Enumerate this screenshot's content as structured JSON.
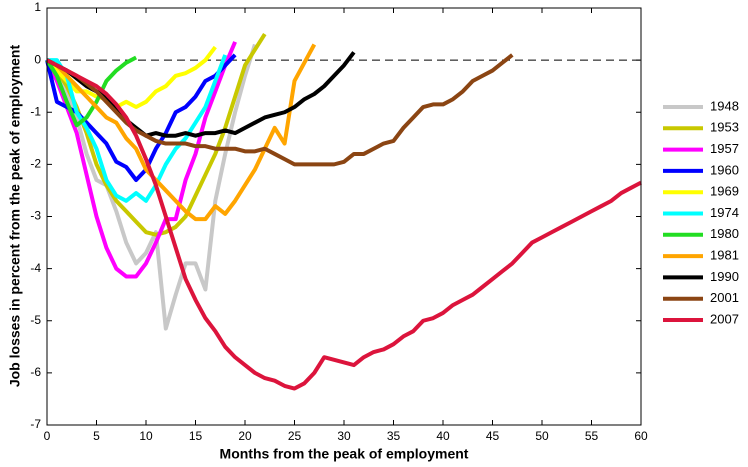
{
  "chart_data": {
    "type": "line",
    "xlabel": "Months from the peak of employment",
    "ylabel": "Job losses in percent from the peak of employment",
    "xlim": [
      0,
      60
    ],
    "ylim": [
      -7,
      1
    ],
    "xticks": [
      0,
      5,
      10,
      15,
      20,
      25,
      30,
      35,
      40,
      45,
      50,
      55,
      60
    ],
    "yticks": [
      -7,
      -6,
      -5,
      -4,
      -3,
      -2,
      -1,
      0,
      1
    ],
    "reference_line": 0,
    "x": [
      0,
      1,
      2,
      3,
      4,
      5,
      6,
      7,
      8,
      9,
      10,
      11,
      12,
      13,
      14,
      15,
      16,
      17,
      18,
      19,
      20,
      21,
      22,
      23,
      24,
      25,
      26,
      27,
      28,
      29,
      30,
      31,
      32,
      33,
      34,
      35,
      36,
      37,
      38,
      39,
      40,
      41,
      42,
      43,
      44,
      45,
      46,
      47,
      48,
      49,
      50,
      51,
      52,
      53,
      54,
      55,
      56,
      57,
      58,
      59,
      60
    ],
    "series": [
      {
        "name": "1948",
        "color": "#c8c8c8",
        "values": [
          0,
          -0.3,
          -0.6,
          -1.1,
          -1.8,
          -2.3,
          -2.4,
          -2.9,
          -3.5,
          -3.9,
          -3.7,
          -3.3,
          -5.15,
          -4.5,
          -3.9,
          -3.9,
          -4.4,
          -2.7,
          -1.8,
          -1.0,
          -0.3,
          0.3,
          null,
          null,
          null,
          null,
          null,
          null,
          null,
          null,
          null,
          null,
          null,
          null,
          null,
          null,
          null,
          null,
          null,
          null,
          null,
          null,
          null,
          null,
          null,
          null,
          null,
          null,
          null,
          null,
          null,
          null,
          null,
          null,
          null,
          null,
          null,
          null,
          null,
          null,
          null
        ]
      },
      {
        "name": "1953",
        "color": "#c8c800",
        "values": [
          0,
          -0.2,
          -0.5,
          -0.9,
          -1.4,
          -2.0,
          -2.4,
          -2.7,
          -2.9,
          -3.1,
          -3.3,
          -3.35,
          -3.3,
          -3.2,
          -3.0,
          -2.6,
          -2.2,
          -1.8,
          -1.3,
          -0.7,
          -0.1,
          0.2,
          0.5,
          null,
          null,
          null,
          null,
          null,
          null,
          null,
          null,
          null,
          null,
          null,
          null,
          null,
          null,
          null,
          null,
          null,
          null,
          null,
          null,
          null,
          null,
          null,
          null,
          null,
          null,
          null,
          null,
          null,
          null,
          null,
          null,
          null,
          null,
          null,
          null,
          null,
          null
        ]
      },
      {
        "name": "1957",
        "color": "#ff00ff",
        "values": [
          0,
          -0.4,
          -0.9,
          -1.4,
          -2.2,
          -3.0,
          -3.6,
          -4.0,
          -4.15,
          -4.15,
          -3.9,
          -3.5,
          -3.05,
          -3.05,
          -2.3,
          -1.8,
          -1.1,
          -0.6,
          -0.1,
          0.35,
          null,
          null,
          null,
          null,
          null,
          null,
          null,
          null,
          null,
          null,
          null,
          null,
          null,
          null,
          null,
          null,
          null,
          null,
          null,
          null,
          null,
          null,
          null,
          null,
          null,
          null,
          null,
          null,
          null,
          null,
          null,
          null,
          null,
          null,
          null,
          null,
          null,
          null,
          null,
          null,
          null
        ]
      },
      {
        "name": "1960",
        "color": "#0000ff",
        "values": [
          0,
          -0.8,
          -0.9,
          -1.0,
          -1.2,
          -1.4,
          -1.6,
          -1.95,
          -2.05,
          -2.3,
          -2.1,
          -1.7,
          -1.4,
          -1.0,
          -0.9,
          -0.7,
          -0.4,
          -0.3,
          -0.1,
          0.1,
          null,
          null,
          null,
          null,
          null,
          null,
          null,
          null,
          null,
          null,
          null,
          null,
          null,
          null,
          null,
          null,
          null,
          null,
          null,
          null,
          null,
          null,
          null,
          null,
          null,
          null,
          null,
          null,
          null,
          null,
          null,
          null,
          null,
          null,
          null,
          null,
          null,
          null,
          null,
          null,
          null
        ]
      },
      {
        "name": "1969",
        "color": "#ffff00",
        "values": [
          0,
          -0.2,
          -0.4,
          -0.6,
          -0.6,
          -0.7,
          -0.75,
          -0.9,
          -0.8,
          -0.9,
          -0.8,
          -0.6,
          -0.5,
          -0.3,
          -0.25,
          -0.15,
          0,
          0.25,
          null,
          null,
          null,
          null,
          null,
          null,
          null,
          null,
          null,
          null,
          null,
          null,
          null,
          null,
          null,
          null,
          null,
          null,
          null,
          null,
          null,
          null,
          null,
          null,
          null,
          null,
          null,
          null,
          null,
          null,
          null,
          null,
          null,
          null,
          null,
          null,
          null,
          null,
          null,
          null,
          null,
          null,
          null
        ]
      },
      {
        "name": "1974",
        "color": "#00ffff",
        "values": [
          0,
          0,
          -0.3,
          -1.0,
          -1.3,
          -1.7,
          -2.3,
          -2.6,
          -2.7,
          -2.55,
          -2.7,
          -2.4,
          -2.0,
          -1.7,
          -1.5,
          -1.2,
          -0.9,
          -0.4,
          0.1,
          null,
          null,
          null,
          null,
          null,
          null,
          null,
          null,
          null,
          null,
          null,
          null,
          null,
          null,
          null,
          null,
          null,
          null,
          null,
          null,
          null,
          null,
          null,
          null,
          null,
          null,
          null,
          null,
          null,
          null,
          null,
          null,
          null,
          null,
          null,
          null,
          null,
          null,
          null,
          null,
          null,
          null
        ]
      },
      {
        "name": "1980",
        "color": "#22dd22",
        "values": [
          0,
          -0.3,
          -0.8,
          -1.25,
          -1.1,
          -0.8,
          -0.4,
          -0.2,
          -0.05,
          0.05,
          null,
          null,
          null,
          null,
          null,
          null,
          null,
          null,
          null,
          null,
          null,
          null,
          null,
          null,
          null,
          null,
          null,
          null,
          null,
          null,
          null,
          null,
          null,
          null,
          null,
          null,
          null,
          null,
          null,
          null,
          null,
          null,
          null,
          null,
          null,
          null,
          null,
          null,
          null,
          null,
          null,
          null,
          null,
          null,
          null,
          null,
          null,
          null,
          null,
          null,
          null
        ]
      },
      {
        "name": "1981",
        "color": "#ffa500",
        "values": [
          0,
          -0.1,
          -0.3,
          -0.5,
          -0.7,
          -0.9,
          -1.1,
          -1.2,
          -1.5,
          -1.7,
          -2.1,
          -2.3,
          -2.5,
          -2.7,
          -2.9,
          -3.05,
          -3.05,
          -2.8,
          -2.95,
          -2.7,
          -2.4,
          -2.1,
          -1.7,
          -1.3,
          -1.6,
          -0.4,
          -0.05,
          0.3,
          null,
          null,
          null,
          null,
          null,
          null,
          null,
          null,
          null,
          null,
          null,
          null,
          null,
          null,
          null,
          null,
          null,
          null,
          null,
          null,
          null,
          null,
          null,
          null,
          null,
          null,
          null,
          null,
          null,
          null,
          null,
          null,
          null
        ]
      },
      {
        "name": "1990",
        "color": "#000000",
        "values": [
          0,
          -0.1,
          -0.2,
          -0.35,
          -0.5,
          -0.6,
          -0.7,
          -0.9,
          -1.15,
          -1.3,
          -1.45,
          -1.4,
          -1.45,
          -1.45,
          -1.4,
          -1.45,
          -1.4,
          -1.4,
          -1.35,
          -1.4,
          -1.3,
          -1.2,
          -1.1,
          -1.05,
          -1.0,
          -0.9,
          -0.75,
          -0.65,
          -0.5,
          -0.3,
          -0.1,
          0.15,
          null,
          null,
          null,
          null,
          null,
          null,
          null,
          null,
          null,
          null,
          null,
          null,
          null,
          null,
          null,
          null,
          null,
          null,
          null,
          null,
          null,
          null,
          null,
          null,
          null,
          null,
          null,
          null,
          null
        ]
      },
      {
        "name": "2001",
        "color": "#8b4513",
        "values": [
          0,
          -0.1,
          -0.2,
          -0.3,
          -0.45,
          -0.6,
          -0.8,
          -1.0,
          -1.2,
          -1.35,
          -1.45,
          -1.55,
          -1.6,
          -1.6,
          -1.6,
          -1.65,
          -1.65,
          -1.7,
          -1.7,
          -1.7,
          -1.75,
          -1.75,
          -1.7,
          -1.8,
          -1.9,
          -2.0,
          -2.0,
          -2.0,
          -2.0,
          -2.0,
          -1.95,
          -1.8,
          -1.8,
          -1.7,
          -1.6,
          -1.55,
          -1.3,
          -1.1,
          -0.9,
          -0.85,
          -0.85,
          -0.75,
          -0.6,
          -0.4,
          -0.3,
          -0.2,
          -0.05,
          0.1,
          null,
          null,
          null,
          null,
          null,
          null,
          null,
          null,
          null,
          null,
          null,
          null,
          null
        ]
      },
      {
        "name": "2007",
        "color": "#dc143c",
        "values": [
          0,
          -0.1,
          -0.2,
          -0.3,
          -0.4,
          -0.5,
          -0.65,
          -0.85,
          -1.1,
          -1.45,
          -1.9,
          -2.4,
          -3.0,
          -3.6,
          -4.2,
          -4.6,
          -4.95,
          -5.2,
          -5.5,
          -5.7,
          -5.85,
          -6.0,
          -6.1,
          -6.15,
          -6.25,
          -6.3,
          -6.2,
          -6.0,
          -5.7,
          -5.75,
          -5.8,
          -5.85,
          -5.7,
          -5.6,
          -5.55,
          -5.45,
          -5.3,
          -5.2,
          -5.0,
          -4.95,
          -4.85,
          -4.7,
          -4.6,
          -4.5,
          -4.35,
          -4.2,
          -4.05,
          -3.9,
          -3.7,
          -3.5,
          -3.4,
          -3.3,
          -3.2,
          -3.1,
          -3.0,
          -2.9,
          -2.8,
          -2.7,
          -2.55,
          -2.45,
          -2.35
        ]
      }
    ]
  }
}
